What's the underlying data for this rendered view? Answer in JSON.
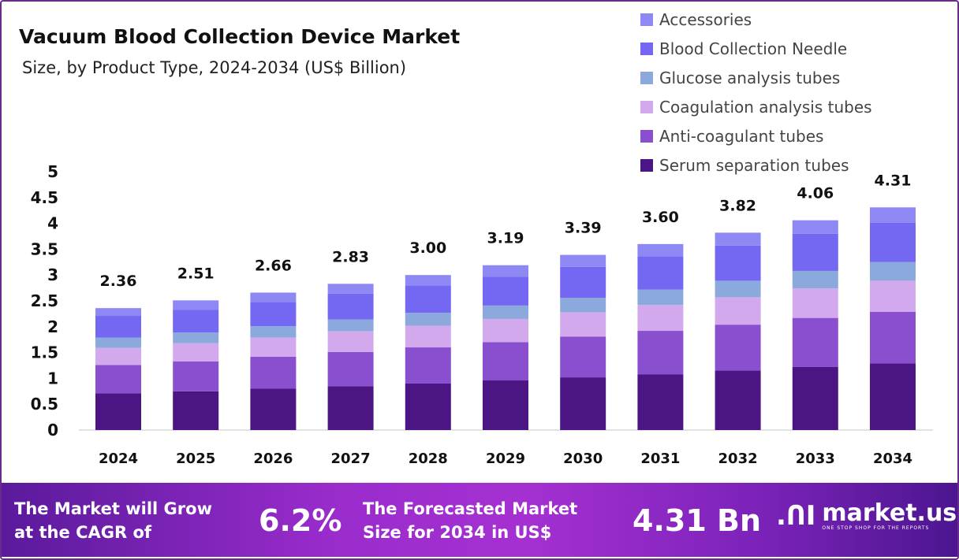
{
  "chart_data": {
    "type": "bar",
    "stacked": true,
    "title": "Vacuum Blood Collection Device Market",
    "subtitle": "Size, by Product Type, 2024-2034 (US$ Billion)",
    "categories": [
      "2024",
      "2025",
      "2026",
      "2027",
      "2028",
      "2029",
      "2030",
      "2031",
      "2032",
      "2033",
      "2034"
    ],
    "totals": [
      "2.36",
      "2.51",
      "2.66",
      "2.83",
      "3.00",
      "3.19",
      "3.39",
      "3.60",
      "3.82",
      "4.06",
      "4.31"
    ],
    "yticks": [
      "0",
      "0.5",
      "1",
      "1.5",
      "2",
      "2.5",
      "3",
      "3.5",
      "4",
      "4.5",
      "5"
    ],
    "ylim": [
      0,
      5
    ],
    "grid": false,
    "legend_position": "top-right",
    "series": [
      {
        "name": "Serum separation tubes",
        "color": "#4b1683",
        "values": [
          0.71,
          0.75,
          0.8,
          0.85,
          0.9,
          0.96,
          1.02,
          1.08,
          1.15,
          1.22,
          1.29
        ]
      },
      {
        "name": "Anti-coagulant tubes",
        "color": "#8a4fcf",
        "values": [
          0.55,
          0.58,
          0.62,
          0.66,
          0.7,
          0.74,
          0.79,
          0.84,
          0.89,
          0.95,
          1.0
        ]
      },
      {
        "name": "Coagulation analysis tubes",
        "color": "#d3a9ee",
        "values": [
          0.33,
          0.35,
          0.37,
          0.4,
          0.42,
          0.45,
          0.47,
          0.5,
          0.53,
          0.57,
          0.6
        ]
      },
      {
        "name": "Glucose analysis tubes",
        "color": "#8ba9dd",
        "values": [
          0.2,
          0.21,
          0.22,
          0.23,
          0.25,
          0.26,
          0.28,
          0.3,
          0.32,
          0.34,
          0.36
        ]
      },
      {
        "name": "Blood Collection Needle",
        "color": "#7468f2",
        "values": [
          0.42,
          0.44,
          0.47,
          0.5,
          0.53,
          0.56,
          0.6,
          0.64,
          0.68,
          0.72,
          0.76
        ]
      },
      {
        "name": "Accessories",
        "color": "#8d88f3",
        "values": [
          0.15,
          0.18,
          0.18,
          0.19,
          0.2,
          0.22,
          0.23,
          0.24,
          0.25,
          0.26,
          0.3
        ]
      }
    ]
  },
  "footer": {
    "cagr_label_1": "The Market will Grow",
    "cagr_label_2": "at the CAGR of",
    "cagr_value": "6.2%",
    "forecast_label_1": "The Forecasted Market",
    "forecast_label_2": "Size for 2034 in US$",
    "forecast_value": "4.31 Bn",
    "logo_text": "market.us",
    "logo_tagline": "ONE STOP SHOP FOR THE REPORTS"
  }
}
